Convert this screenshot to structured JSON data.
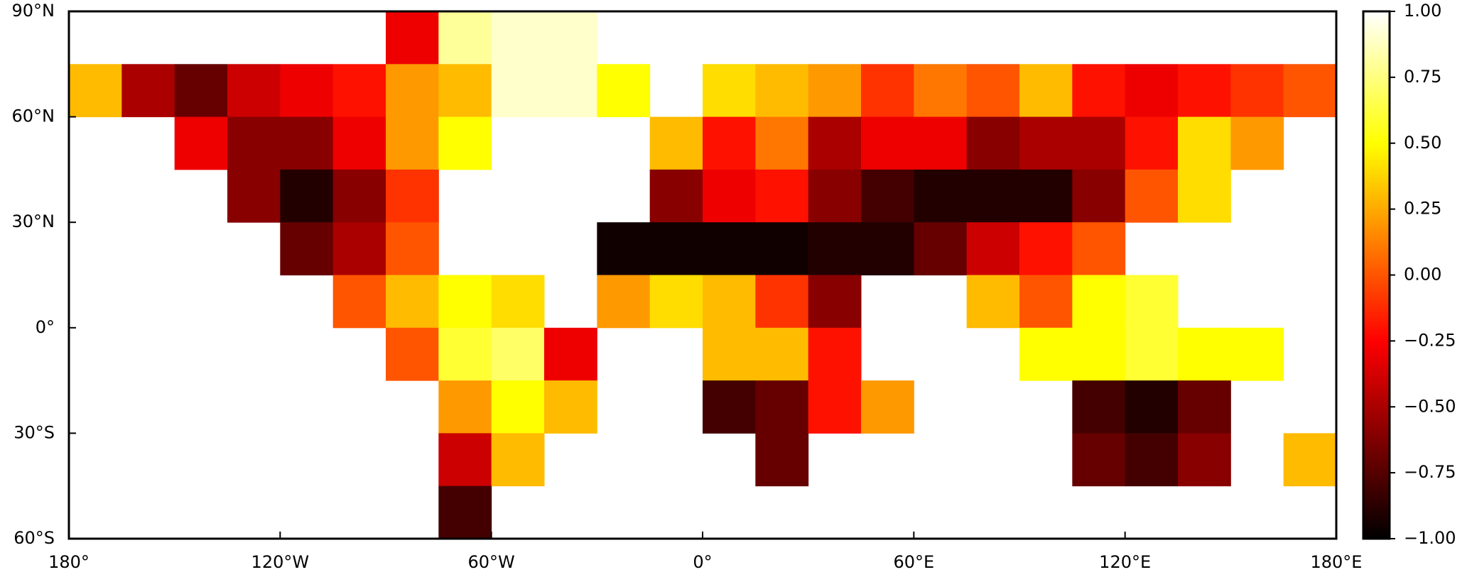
{
  "chart_data": {
    "type": "map",
    "xlim": [
      -180,
      180
    ],
    "xticks": [
      {
        "value": -180,
        "label": "180°"
      },
      {
        "value": -120,
        "label": "120°W"
      },
      {
        "value": -60,
        "label": "60°W"
      },
      {
        "value": 0,
        "label": "0°"
      },
      {
        "value": 60,
        "label": "60°E"
      },
      {
        "value": 120,
        "label": "120°E"
      },
      {
        "value": 180,
        "label": "180°E"
      }
    ],
    "ylim": [
      -60,
      90
    ],
    "yticks": [
      {
        "value": 90,
        "label": "90°N"
      },
      {
        "value": 60,
        "label": "60°N"
      },
      {
        "value": 30,
        "label": "30°N"
      },
      {
        "value": 0,
        "label": "0°"
      },
      {
        "value": -30,
        "label": "30°S"
      },
      {
        "value": -60,
        "label": "60°S"
      }
    ],
    "lon": [
      -172.5,
      -157.5,
      -142.5,
      -127.5,
      -112.5,
      -97.5,
      -82.5,
      -67.5,
      -52.5,
      -37.5,
      -22.5,
      -7.5,
      7.5,
      22.5,
      37.5,
      52.5,
      67.5,
      82.5,
      97.5,
      112.5,
      127.5,
      142.5,
      157.5,
      172.5
    ],
    "lat": [
      82.5,
      67.5,
      52.5,
      37.5,
      22.5,
      7.5,
      -7.5,
      -22.5,
      -37.5,
      -52.5
    ],
    "values": [
      [
        null,
        null,
        null,
        null,
        null,
        null,
        -0.3,
        0.8,
        0.9,
        0.9,
        null,
        null,
        null,
        null,
        null,
        null,
        null,
        null,
        null,
        null,
        null,
        null,
        null,
        null
      ],
      [
        0.3,
        -0.5,
        -0.7,
        -0.4,
        -0.3,
        -0.2,
        0.2,
        0.3,
        0.9,
        0.9,
        0.5,
        null,
        0.4,
        0.3,
        0.2,
        -0.1,
        0.1,
        0.0,
        0.3,
        -0.2,
        -0.3,
        -0.2,
        -0.1,
        0.0
      ],
      [
        null,
        null,
        -0.3,
        -0.6,
        -0.6,
        -0.3,
        0.2,
        0.5,
        null,
        null,
        null,
        0.3,
        -0.2,
        0.1,
        -0.5,
        -0.3,
        -0.3,
        -0.6,
        -0.5,
        -0.5,
        -0.2,
        0.4,
        0.2,
        null
      ],
      [
        null,
        null,
        null,
        -0.6,
        -0.9,
        -0.6,
        -0.1,
        null,
        null,
        null,
        null,
        -0.6,
        -0.3,
        -0.2,
        -0.6,
        -0.8,
        -0.9,
        -0.9,
        -0.9,
        -0.6,
        0.0,
        0.4,
        null,
        null
      ],
      [
        null,
        null,
        null,
        null,
        -0.7,
        -0.5,
        0.0,
        null,
        null,
        null,
        -0.95,
        -0.95,
        -0.95,
        -0.95,
        -0.9,
        -0.9,
        -0.7,
        -0.4,
        -0.2,
        0.0,
        null,
        null,
        null,
        null
      ],
      [
        null,
        null,
        null,
        null,
        null,
        0.0,
        0.3,
        0.5,
        0.4,
        null,
        0.2,
        0.4,
        0.3,
        -0.1,
        -0.6,
        null,
        null,
        0.3,
        0.0,
        0.5,
        0.6,
        null,
        null,
        null
      ],
      [
        null,
        null,
        null,
        null,
        null,
        null,
        0.0,
        0.6,
        0.7,
        -0.3,
        null,
        null,
        0.3,
        0.3,
        -0.2,
        null,
        null,
        null,
        0.5,
        0.5,
        0.6,
        0.5,
        0.5,
        null
      ],
      [
        null,
        null,
        null,
        null,
        null,
        null,
        null,
        0.2,
        0.5,
        0.3,
        null,
        null,
        -0.8,
        -0.7,
        -0.2,
        0.2,
        null,
        null,
        null,
        -0.8,
        -0.9,
        -0.7,
        null,
        null
      ],
      [
        null,
        null,
        null,
        null,
        null,
        null,
        null,
        -0.4,
        0.3,
        null,
        null,
        null,
        null,
        -0.7,
        null,
        null,
        null,
        null,
        null,
        -0.7,
        -0.8,
        -0.6,
        null,
        0.3
      ],
      [
        null,
        null,
        null,
        null,
        null,
        null,
        null,
        -0.8,
        null,
        null,
        null,
        null,
        null,
        null,
        null,
        null,
        null,
        null,
        null,
        null,
        null,
        null,
        null,
        null
      ]
    ],
    "colormap": "hot",
    "colorbar": {
      "lim": [
        -1,
        1
      ],
      "ticks": [
        {
          "value": 1,
          "label": "1.00"
        },
        {
          "value": 0.75,
          "label": "0.75"
        },
        {
          "value": 0.5,
          "label": "0.50"
        },
        {
          "value": 0.25,
          "label": "0.25"
        },
        {
          "value": 0,
          "label": "0.00"
        },
        {
          "value": -0.25,
          "label": "−0.25"
        },
        {
          "value": -0.5,
          "label": "−0.50"
        },
        {
          "value": -0.75,
          "label": "−0.75"
        },
        {
          "value": -1,
          "label": "−1.00"
        }
      ]
    }
  }
}
